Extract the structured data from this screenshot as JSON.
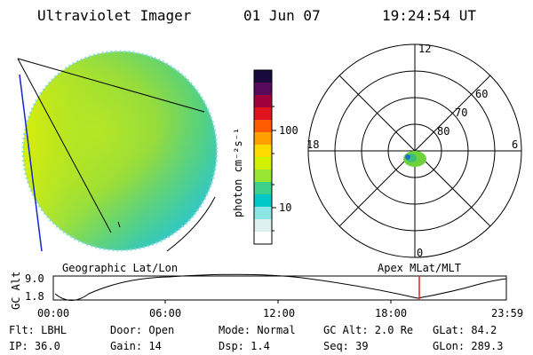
{
  "header": {
    "title": "Ultraviolet Imager",
    "date": "01 Jun 07",
    "time": "19:24:54 UT"
  },
  "colorbar": {
    "label": "photon cm⁻²s⁻¹",
    "tick_100": "100",
    "tick_10": "10",
    "colors": [
      "#1a0a3c",
      "#5a0a5a",
      "#a0003c",
      "#e0141e",
      "#ff5a00",
      "#ffa000",
      "#ffdc00",
      "#d2f000",
      "#96e632",
      "#3cd28c",
      "#00c8c8",
      "#8ce6e6",
      "#dcf0f0",
      "#ffffff"
    ]
  },
  "polar_plot": {
    "mlt_12": "12",
    "mlt_18": "18",
    "mlt_6": "6",
    "mlt_0": "0",
    "lat_60": "60",
    "lat_70": "70",
    "lat_80": "80"
  },
  "labels": {
    "geographic": "Geographic Lat/Lon",
    "apex": "Apex MLat/MLT"
  },
  "altitude_plot": {
    "ylabel": "GC Alt",
    "ytick_top": "9.0",
    "ytick_bottom": "1.8",
    "xticks": [
      "00:00",
      "06:00",
      "12:00",
      "18:00",
      "23:59"
    ],
    "current_time_marker_color": "#e02020"
  },
  "footer": {
    "filter": "Flt: LBHL",
    "ip": "IP: 36.0",
    "door": "Door: Open",
    "gain": "Gain: 14",
    "mode": "Mode: Normal",
    "dsp": "Dsp:    1.4",
    "gc_alt": "GC Alt: 2.0 Re",
    "seq": "Seq: 39",
    "glat": "GLat:  84.2",
    "glon": "GLon: 289.3"
  }
}
